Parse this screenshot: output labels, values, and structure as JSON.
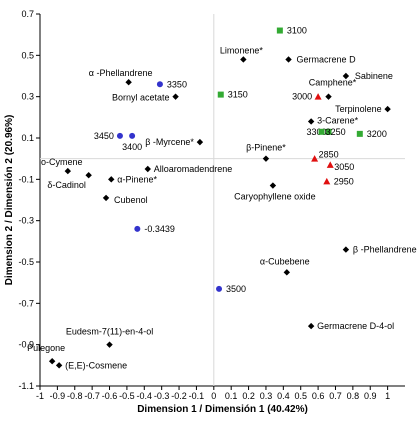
{
  "chart_data": {
    "type": "scatter",
    "xlabel": "Dimension 1 / Dimensión 1 (40.42%)",
    "ylabel": "Dimension 2 / Dimensión 2 (20.96%)",
    "xlim": [
      -1,
      1.1
    ],
    "ylim": [
      -1.1,
      0.7
    ],
    "x_ticks": [
      -1,
      -0.9,
      -0.8,
      -0.7,
      -0.6,
      -0.5,
      -0.4,
      -0.3,
      -0.2,
      -0.1,
      0,
      0.1,
      0.2,
      0.3,
      0.4,
      0.5,
      0.6,
      0.7,
      0.8,
      0.9,
      1
    ],
    "y_ticks": [
      -1.1,
      -0.9,
      -0.7,
      -0.5,
      -0.3,
      -0.1,
      0.1,
      0.3,
      0.5,
      0.7
    ],
    "colors": {
      "compounds": "#000000",
      "blue": "#3333cc",
      "green": "#33aa33",
      "red": "#e01010",
      "gridline": "#d9d9d9"
    },
    "series": [
      {
        "marker": "diamond",
        "color": "#000000",
        "points": [
          {
            "x": 0.17,
            "y": 0.48,
            "label": "Limonene*"
          },
          {
            "x": 0.43,
            "y": 0.48,
            "label": "Germacrene D"
          },
          {
            "x": -0.49,
            "y": 0.37,
            "label": "α -Phellandrene"
          },
          {
            "x": 0.76,
            "y": 0.4,
            "label": "Sabinene"
          },
          {
            "x": -0.22,
            "y": 0.3,
            "label": "Bornyl acetate"
          },
          {
            "x": 0.66,
            "y": 0.3,
            "label": "Camphene*"
          },
          {
            "x": 1.0,
            "y": 0.24,
            "label": "Terpinolene"
          },
          {
            "x": 0.56,
            "y": 0.18,
            "label": "3-Carene*"
          },
          {
            "x": -0.08,
            "y": 0.08,
            "label": "β -Myrcene*"
          },
          {
            "x": 0.3,
            "y": 0.0,
            "label": "β-Pinene*"
          },
          {
            "x": -0.38,
            "y": -0.05,
            "label": "Alloaromadendrene"
          },
          {
            "x": -0.84,
            "y": -0.06,
            "label": "o-Cymene"
          },
          {
            "x": -0.72,
            "y": -0.08,
            "label": "δ-Cadinol"
          },
          {
            "x": -0.59,
            "y": -0.1,
            "label": "α-Pinene*"
          },
          {
            "x": -0.62,
            "y": -0.19,
            "label": "Cubenol"
          },
          {
            "x": 0.34,
            "y": -0.13,
            "label": "Caryophyllene oxide"
          },
          {
            "x": 0.76,
            "y": -0.44,
            "label": "β -Phellandrene"
          },
          {
            "x": 0.42,
            "y": -0.55,
            "label": "α-Cubebene"
          },
          {
            "x": 0.56,
            "y": -0.81,
            "label": "Germacrene D-4-ol"
          },
          {
            "x": -0.6,
            "y": -0.9,
            "label": "Eudesm-7(11)-en-4-ol"
          },
          {
            "x": -0.93,
            "y": -0.98,
            "label": "Pulegone"
          },
          {
            "x": -0.89,
            "y": -1.0,
            "label": "(E,E)-Cosmene"
          }
        ]
      },
      {
        "marker": "circle",
        "color": "#3333cc",
        "points": [
          {
            "x": -0.31,
            "y": 0.36,
            "label": "3350"
          },
          {
            "x": -0.54,
            "y": 0.11,
            "label": "3450"
          },
          {
            "x": -0.47,
            "y": 0.11,
            "label": "3400"
          },
          {
            "x": -0.44,
            "y": -0.34,
            "label": "-0.3439"
          },
          {
            "x": 0.03,
            "y": -0.63,
            "label": "3500"
          }
        ]
      },
      {
        "marker": "square",
        "color": "#33aa33",
        "points": [
          {
            "x": 0.38,
            "y": 0.62,
            "label": "3100"
          },
          {
            "x": 0.04,
            "y": 0.31,
            "label": "3150"
          },
          {
            "x": 0.66,
            "y": 0.13,
            "label": "3300"
          },
          {
            "x": 0.62,
            "y": 0.13,
            "label": "3250"
          },
          {
            "x": 0.84,
            "y": 0.12,
            "label": "3200"
          }
        ]
      },
      {
        "marker": "triangle",
        "color": "#e01010",
        "points": [
          {
            "x": 0.6,
            "y": 0.3,
            "label": "3000"
          },
          {
            "x": 0.58,
            "y": 0.0,
            "label": "2850"
          },
          {
            "x": 0.67,
            "y": -0.03,
            "label": "3050"
          },
          {
            "x": 0.65,
            "y": -0.11,
            "label": "2950"
          }
        ]
      }
    ]
  }
}
